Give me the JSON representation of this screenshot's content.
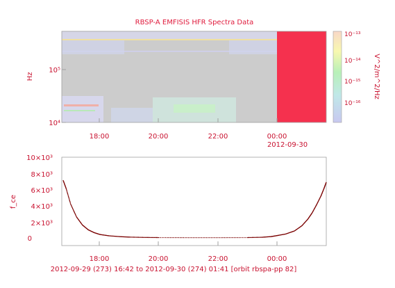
{
  "title": "RBSP-A EMFISIS  HFR Spectra Data",
  "colors": {
    "text": "#c8102e",
    "fill_red": "#f5314e",
    "spectro_gray": "#cccccc",
    "axis": "#a0a0a0"
  },
  "chart_data": [
    {
      "type": "heatmap",
      "title": "RBSP-A EMFISIS  HFR Spectra Data",
      "xlabel": "",
      "ylabel": "Hz",
      "y_scale": "log",
      "y_tick_labels": [
        "10⁴",
        "10⁵"
      ],
      "x_tick_labels": [
        "18:00",
        "20:00",
        "22:00",
        "00:00"
      ],
      "x_secondary_label": "2012-09-30",
      "colorbar": {
        "label": "V^2/m^2/Hz",
        "scale": "log",
        "tick_labels": [
          "10⁻¹⁶",
          "10⁻¹⁵",
          "10⁻¹⁴",
          "10⁻¹³"
        ],
        "colors": [
          "#c8c8f0",
          "#b8f0b8",
          "#f8f8b0",
          "#f8d8c8"
        ]
      }
    },
    {
      "type": "line",
      "title": "",
      "ylabel": "f_ce",
      "xlabel": "2012-09-29 (273) 16:42 to 2012-09-30 (274) 01:41  [orbit rbspa-pp 82]",
      "y_tick_labels": [
        "0",
        "2×10³",
        "4×10³",
        "6×10³",
        "8×10³",
        "10×10³"
      ],
      "ylim": [
        0,
        10000
      ],
      "x_hours": [
        16.75,
        16.85,
        17.0,
        17.2,
        17.4,
        17.6,
        17.8,
        18.0,
        18.3,
        18.7,
        19.0,
        19.5,
        20.0,
        21.0,
        22.0,
        23.0,
        23.5,
        23.8,
        24.0,
        24.3,
        24.6,
        24.85,
        25.05,
        25.2,
        25.35,
        25.5,
        25.6,
        25.68
      ],
      "values": [
        7100,
        6100,
        4200,
        2600,
        1600,
        1000,
        650,
        420,
        260,
        150,
        100,
        60,
        40,
        30,
        30,
        40,
        80,
        160,
        280,
        480,
        860,
        1500,
        2300,
        3100,
        4100,
        5200,
        6100,
        6900
      ]
    }
  ],
  "top_x_ticks": [
    "18:00",
    "20:00",
    "22:00",
    "00:00"
  ],
  "top_date_label": "2012-09-30",
  "bottom_x_ticks": [
    "18:00",
    "20:00",
    "22:00",
    "00:00"
  ],
  "top_ylabel": "Hz",
  "top_y_ticks": [
    "10⁴",
    "10⁵"
  ],
  "colorbar_label": "V^2/m^2/Hz",
  "colorbar_ticks": [
    "10⁻¹³",
    "10⁻¹⁴",
    "10⁻¹⁵",
    "10⁻¹⁶"
  ],
  "bottom_ylabel": "f_ce",
  "bottom_y_ticks": [
    "10×10³",
    "8×10³",
    "6×10³",
    "4×10³",
    "2×10³",
    "0"
  ],
  "footer": "2012-09-29 (273) 16:42 to 2012-09-30 (274) 01:41  [orbit rbspa-pp 82]"
}
